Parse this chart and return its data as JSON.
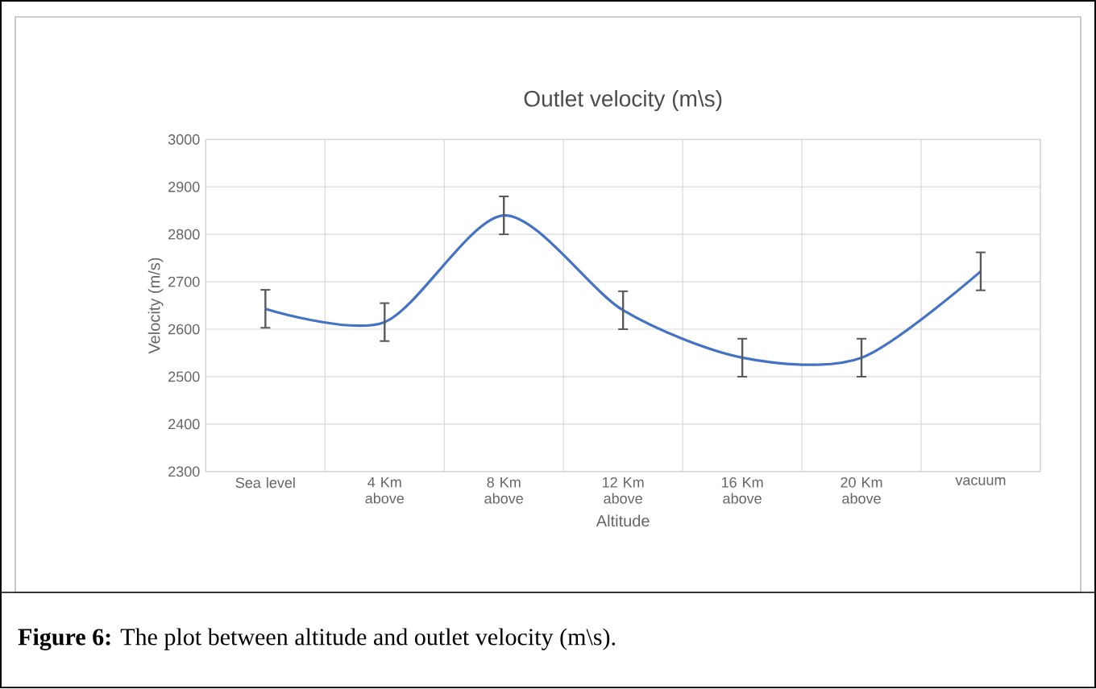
{
  "chart_data": {
    "type": "line",
    "title": "Outlet velocity (m\\s)",
    "xlabel": "Altitude",
    "ylabel": "Velocity (m/s)",
    "categories": [
      "Sea level",
      "4 Km above",
      "8 Km above",
      "12 Km above",
      "16 Km above",
      "20 Km above",
      "vacuum"
    ],
    "series": [
      {
        "color": "#4472c4",
        "values": [
          2643,
          2615,
          2840,
          2640,
          2540,
          2540,
          2722
        ],
        "errors": [
          40,
          40,
          40,
          40,
          40,
          40,
          40
        ]
      }
    ],
    "ylim": [
      2300,
      3000
    ],
    "yticks": [
      2300,
      2400,
      2500,
      2600,
      2700,
      2800,
      2900,
      3000
    ],
    "grid": true,
    "marker": "none",
    "line_style": "solid",
    "annotations": [
      "**Figure 6:** The plot between altitude and outlet velocity (m\\s)."
    ]
  }
}
